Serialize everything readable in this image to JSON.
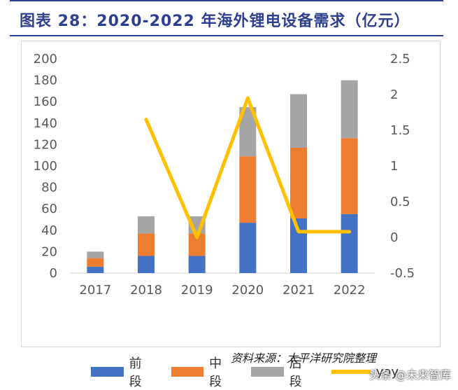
{
  "title": "图表 28：2020-2022 年海外锂电设备需求（亿元）",
  "source": "资料来源：太平洋研究院整理",
  "watermark": "头条 @未来智库",
  "colors": {
    "title": "#2f3f8f",
    "front": "#4472c4",
    "middle": "#ed7d31",
    "back": "#a5a5a5",
    "yoy": "#ffc000"
  },
  "chart_data": {
    "type": "bar",
    "stacked": true,
    "categories": [
      "2017",
      "2018",
      "2019",
      "2020",
      "2021",
      "2022"
    ],
    "series": [
      {
        "name": "前段",
        "values": [
          6,
          16,
          16,
          47,
          51,
          55
        ]
      },
      {
        "name": "中段",
        "values": [
          8,
          21,
          21,
          62,
          66,
          71
        ]
      },
      {
        "name": "后段",
        "values": [
          6,
          16,
          16,
          46,
          50,
          54
        ]
      }
    ],
    "line_series": {
      "name": "yoy",
      "axis": "right",
      "values": [
        null,
        1.65,
        0.0,
        1.95,
        0.08,
        0.08
      ]
    },
    "ylim": [
      0,
      200
    ],
    "yticks": [
      "200",
      "180",
      "160",
      "140",
      "120",
      "100",
      "80",
      "60",
      "40",
      "20",
      "0"
    ],
    "y2lim": [
      -0.5,
      2.5
    ],
    "y2ticks": [
      "2.5",
      "2",
      "1.5",
      "1",
      "0.5",
      "0",
      "-0.5"
    ],
    "grid": false,
    "legend_position": "bottom"
  }
}
